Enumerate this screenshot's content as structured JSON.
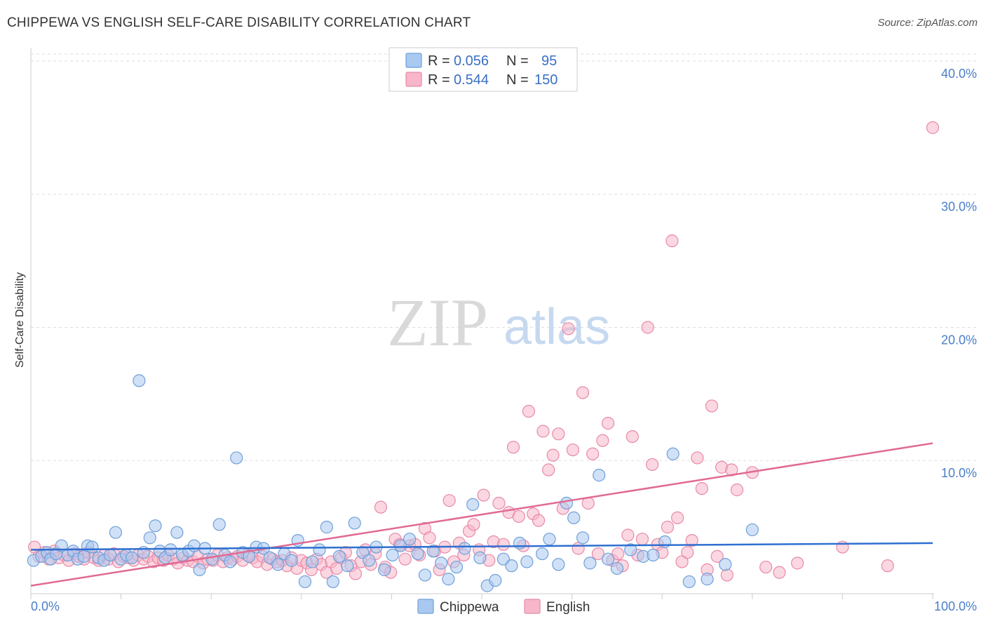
{
  "header": {
    "title": "CHIPPEWA VS ENGLISH SELF-CARE DISABILITY CORRELATION CHART",
    "source": "Source: ZipAtlas.com"
  },
  "watermark": {
    "zip": "ZIP",
    "atlas": "atlas"
  },
  "colors": {
    "chippewa_fill": "#a9c9f0",
    "chippewa_stroke": "#6f9fd9",
    "chippewa_line": "#2f6fd1",
    "english_fill": "#f7b6c9",
    "english_stroke": "#e88aa8",
    "english_line": "#e06a93",
    "grid": "#dddddd",
    "tick_label": "#4a7fc9"
  },
  "legend": {
    "rows": [
      {
        "r_label": "R =",
        "r_value": "0.056",
        "n_label": "N =",
        "n_value": "95"
      },
      {
        "r_label": "R =",
        "r_value": "0.544",
        "n_label": "N =",
        "n_value": "150"
      }
    ]
  },
  "chart_data": {
    "type": "scatter",
    "xlabel": "",
    "ylabel": "Self-Care Disability",
    "xlim": [
      0,
      100
    ],
    "ylim": [
      0,
      41
    ],
    "x_tick_labels": [
      "0.0%",
      "100.0%"
    ],
    "y_ticks": [
      10,
      20,
      30,
      40
    ],
    "y_tick_labels": [
      "10.0%",
      "20.0%",
      "30.0%",
      "40.0%"
    ],
    "grid": "horizontal dashed",
    "legend_placement": "top-center",
    "series": [
      {
        "name": "Chippewa",
        "trend": {
          "x": [
            0,
            100
          ],
          "y": [
            3.3,
            3.8
          ]
        },
        "points": [
          [
            0.3,
            2.5
          ],
          [
            1.2,
            2.8
          ],
          [
            1.8,
            3.1
          ],
          [
            2.2,
            2.6
          ],
          [
            2.8,
            3.0
          ],
          [
            3.4,
            3.6
          ],
          [
            4.1,
            2.9
          ],
          [
            4.7,
            3.2
          ],
          [
            5.2,
            2.6
          ],
          [
            5.9,
            2.8
          ],
          [
            6.3,
            3.6
          ],
          [
            6.8,
            3.5
          ],
          [
            7.5,
            2.7
          ],
          [
            8.1,
            2.5
          ],
          [
            8.8,
            2.9
          ],
          [
            9.4,
            4.6
          ],
          [
            10.0,
            2.6
          ],
          [
            10.6,
            2.9
          ],
          [
            11.2,
            2.7
          ],
          [
            12.0,
            16.0
          ],
          [
            12.5,
            3.1
          ],
          [
            13.2,
            4.2
          ],
          [
            13.8,
            5.1
          ],
          [
            14.3,
            3.2
          ],
          [
            14.9,
            2.7
          ],
          [
            15.5,
            3.3
          ],
          [
            16.2,
            4.6
          ],
          [
            16.8,
            2.9
          ],
          [
            17.5,
            3.2
          ],
          [
            18.1,
            3.6
          ],
          [
            18.7,
            1.8
          ],
          [
            19.3,
            3.4
          ],
          [
            20.1,
            2.6
          ],
          [
            20.9,
            5.2
          ],
          [
            21.5,
            2.9
          ],
          [
            22.1,
            2.4
          ],
          [
            22.8,
            10.2
          ],
          [
            23.5,
            3.1
          ],
          [
            24.2,
            2.8
          ],
          [
            25.0,
            3.5
          ],
          [
            25.8,
            3.4
          ],
          [
            26.5,
            2.7
          ],
          [
            27.4,
            2.2
          ],
          [
            28.1,
            3.0
          ],
          [
            28.9,
            2.5
          ],
          [
            29.6,
            4.0
          ],
          [
            30.4,
            0.9
          ],
          [
            31.2,
            2.4
          ],
          [
            32.0,
            3.3
          ],
          [
            32.8,
            5.0
          ],
          [
            33.5,
            0.9
          ],
          [
            34.2,
            2.8
          ],
          [
            35.1,
            2.1
          ],
          [
            35.9,
            5.3
          ],
          [
            36.8,
            3.1
          ],
          [
            37.5,
            2.5
          ],
          [
            38.3,
            3.5
          ],
          [
            39.2,
            1.8
          ],
          [
            40.1,
            2.9
          ],
          [
            41.0,
            3.6
          ],
          [
            42.0,
            4.1
          ],
          [
            42.9,
            3.0
          ],
          [
            43.7,
            1.4
          ],
          [
            44.6,
            3.2
          ],
          [
            45.5,
            2.3
          ],
          [
            46.3,
            1.1
          ],
          [
            47.2,
            2.0
          ],
          [
            48.1,
            3.4
          ],
          [
            49.0,
            6.7
          ],
          [
            49.8,
            2.7
          ],
          [
            50.6,
            0.6
          ],
          [
            51.5,
            1.0
          ],
          [
            52.4,
            2.6
          ],
          [
            53.3,
            2.1
          ],
          [
            54.2,
            3.8
          ],
          [
            55.0,
            2.4
          ],
          [
            56.7,
            3.0
          ],
          [
            57.5,
            4.1
          ],
          [
            58.5,
            2.2
          ],
          [
            59.4,
            6.8
          ],
          [
            60.2,
            5.7
          ],
          [
            61.2,
            4.2
          ],
          [
            62.0,
            2.3
          ],
          [
            63.0,
            8.9
          ],
          [
            64.0,
            2.6
          ],
          [
            65.0,
            1.9
          ],
          [
            66.5,
            3.3
          ],
          [
            67.9,
            2.8
          ],
          [
            69.0,
            2.9
          ],
          [
            70.3,
            3.9
          ],
          [
            71.2,
            10.5
          ],
          [
            73.0,
            0.9
          ],
          [
            75.0,
            1.1
          ],
          [
            77.0,
            2.2
          ],
          [
            80.0,
            4.8
          ]
        ]
      },
      {
        "name": "English",
        "trend": {
          "x": [
            0,
            100
          ],
          "y": [
            0.6,
            11.3
          ]
        },
        "points": [
          [
            0.4,
            3.5
          ],
          [
            0.9,
            2.8
          ],
          [
            1.5,
            3.1
          ],
          [
            2.0,
            2.6
          ],
          [
            2.6,
            3.2
          ],
          [
            3.1,
            2.7
          ],
          [
            3.7,
            2.9
          ],
          [
            4.2,
            2.5
          ],
          [
            4.8,
            3.0
          ],
          [
            5.3,
            2.8
          ],
          [
            5.9,
            2.6
          ],
          [
            6.4,
            3.1
          ],
          [
            7.0,
            2.7
          ],
          [
            7.5,
            2.5
          ],
          [
            8.1,
            2.9
          ],
          [
            8.6,
            2.6
          ],
          [
            9.2,
            3.0
          ],
          [
            9.7,
            2.4
          ],
          [
            10.3,
            2.8
          ],
          [
            10.8,
            2.7
          ],
          [
            11.4,
            2.5
          ],
          [
            11.9,
            2.9
          ],
          [
            12.5,
            2.6
          ],
          [
            13.0,
            2.8
          ],
          [
            13.6,
            2.4
          ],
          [
            14.1,
            2.7
          ],
          [
            14.7,
            2.5
          ],
          [
            15.2,
            2.9
          ],
          [
            15.8,
            2.6
          ],
          [
            16.3,
            2.3
          ],
          [
            16.9,
            2.7
          ],
          [
            17.4,
            2.5
          ],
          [
            18.0,
            2.4
          ],
          [
            18.5,
            2.8
          ],
          [
            19.1,
            2.3
          ],
          [
            19.6,
            2.6
          ],
          [
            20.2,
            2.5
          ],
          [
            20.7,
            2.9
          ],
          [
            21.3,
            2.4
          ],
          [
            21.8,
            2.7
          ],
          [
            22.4,
            2.6
          ],
          [
            22.9,
            2.8
          ],
          [
            23.5,
            2.5
          ],
          [
            24.0,
            2.9
          ],
          [
            24.6,
            2.7
          ],
          [
            25.1,
            2.4
          ],
          [
            25.7,
            2.8
          ],
          [
            26.2,
            2.2
          ],
          [
            26.8,
            2.6
          ],
          [
            27.3,
            2.4
          ],
          [
            27.9,
            2.5
          ],
          [
            28.4,
            2.1
          ],
          [
            28.9,
            2.7
          ],
          [
            29.5,
            1.9
          ],
          [
            30.0,
            2.5
          ],
          [
            30.6,
            2.3
          ],
          [
            31.1,
            1.8
          ],
          [
            31.7,
            2.6
          ],
          [
            32.2,
            2.2
          ],
          [
            32.8,
            1.6
          ],
          [
            33.3,
            2.4
          ],
          [
            33.9,
            1.9
          ],
          [
            34.4,
            2.7
          ],
          [
            34.9,
            3.1
          ],
          [
            35.5,
            2.1
          ],
          [
            36.0,
            1.5
          ],
          [
            36.6,
            2.4
          ],
          [
            37.1,
            3.3
          ],
          [
            37.7,
            2.2
          ],
          [
            38.2,
            3.0
          ],
          [
            38.8,
            6.5
          ],
          [
            39.3,
            2.0
          ],
          [
            39.9,
            1.6
          ],
          [
            40.4,
            4.1
          ],
          [
            40.9,
            3.7
          ],
          [
            41.5,
            2.6
          ],
          [
            42.0,
            3.6
          ],
          [
            42.6,
            3.7
          ],
          [
            43.1,
            2.9
          ],
          [
            43.7,
            4.9
          ],
          [
            44.2,
            4.2
          ],
          [
            44.8,
            3.2
          ],
          [
            45.3,
            1.8
          ],
          [
            45.9,
            3.5
          ],
          [
            46.4,
            7.0
          ],
          [
            46.9,
            2.4
          ],
          [
            47.5,
            3.8
          ],
          [
            48.0,
            2.9
          ],
          [
            48.6,
            4.7
          ],
          [
            49.1,
            5.2
          ],
          [
            49.7,
            3.3
          ],
          [
            50.2,
            7.4
          ],
          [
            50.8,
            2.5
          ],
          [
            51.3,
            3.9
          ],
          [
            51.9,
            6.8
          ],
          [
            52.4,
            3.7
          ],
          [
            53.0,
            6.1
          ],
          [
            53.5,
            11.0
          ],
          [
            54.1,
            5.8
          ],
          [
            54.6,
            3.6
          ],
          [
            55.2,
            13.7
          ],
          [
            55.7,
            6.0
          ],
          [
            56.3,
            5.5
          ],
          [
            56.8,
            12.2
          ],
          [
            57.4,
            9.3
          ],
          [
            57.9,
            10.4
          ],
          [
            58.5,
            12.0
          ],
          [
            59.0,
            6.4
          ],
          [
            59.6,
            19.9
          ],
          [
            60.1,
            10.8
          ],
          [
            60.7,
            3.4
          ],
          [
            61.2,
            15.1
          ],
          [
            61.8,
            6.8
          ],
          [
            62.3,
            10.5
          ],
          [
            62.9,
            3.0
          ],
          [
            63.4,
            11.5
          ],
          [
            64.0,
            12.8
          ],
          [
            64.5,
            2.5
          ],
          [
            65.1,
            3.0
          ],
          [
            65.6,
            2.1
          ],
          [
            66.2,
            4.4
          ],
          [
            66.7,
            11.8
          ],
          [
            67.3,
            2.9
          ],
          [
            67.8,
            4.1
          ],
          [
            68.4,
            20.0
          ],
          [
            68.9,
            9.7
          ],
          [
            69.5,
            3.7
          ],
          [
            70.0,
            3.1
          ],
          [
            70.6,
            5.0
          ],
          [
            71.1,
            26.5
          ],
          [
            71.7,
            5.7
          ],
          [
            72.2,
            2.4
          ],
          [
            72.8,
            3.1
          ],
          [
            73.3,
            4.0
          ],
          [
            73.9,
            10.2
          ],
          [
            74.4,
            7.9
          ],
          [
            75.0,
            1.8
          ],
          [
            75.5,
            14.1
          ],
          [
            76.1,
            2.8
          ],
          [
            76.6,
            9.5
          ],
          [
            77.2,
            1.4
          ],
          [
            77.7,
            9.3
          ],
          [
            78.3,
            7.8
          ],
          [
            80.0,
            9.1
          ],
          [
            81.5,
            2.0
          ],
          [
            83.0,
            1.6
          ],
          [
            85.0,
            2.3
          ],
          [
            90.0,
            3.5
          ],
          [
            95.0,
            2.1
          ],
          [
            100.0,
            35.0
          ]
        ]
      }
    ]
  }
}
